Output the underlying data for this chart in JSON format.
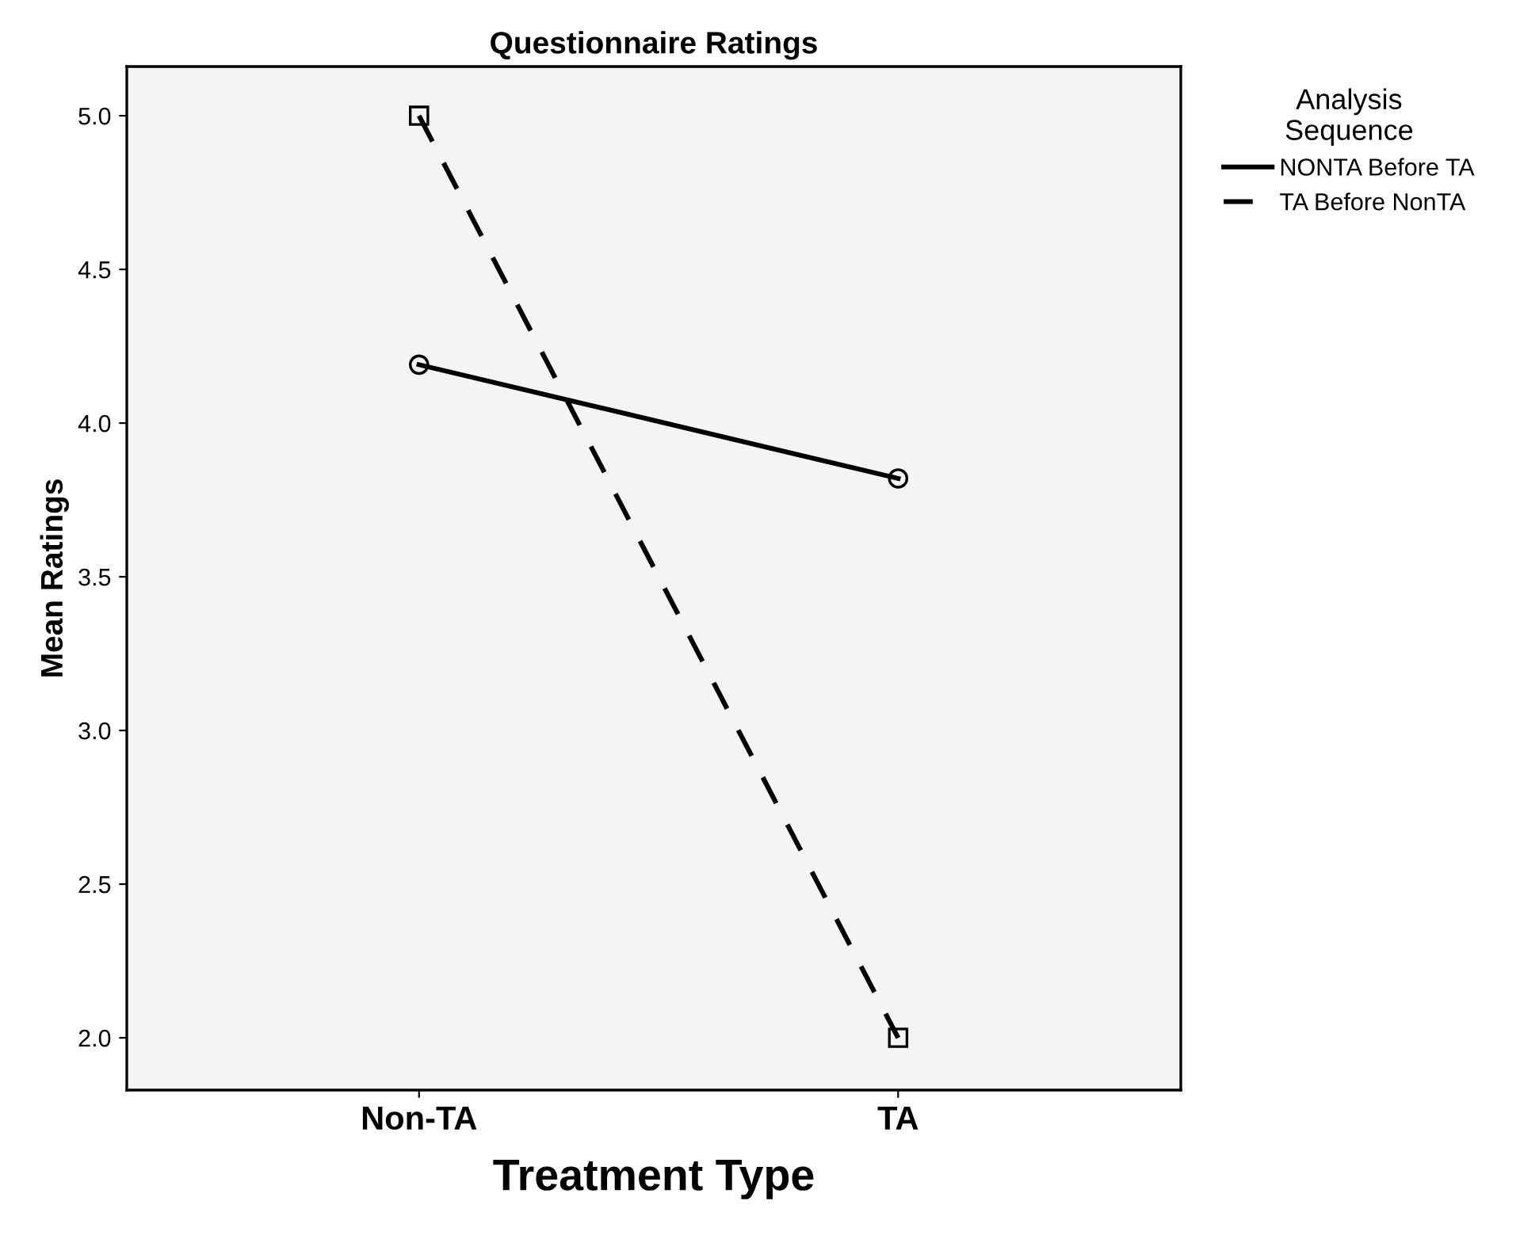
{
  "chart_data": {
    "type": "line",
    "title": "Questionnaire Ratings",
    "xlabel": "Treatment Type",
    "ylabel": "Mean Ratings",
    "legend_title": "Analysis\nSequence",
    "legend": "right",
    "grid": false,
    "categories": [
      "Non-TA",
      "TA"
    ],
    "ylim": [
      1.83,
      5.16
    ],
    "yticks": [
      {
        "value": 2.0,
        "label": "2.0"
      },
      {
        "value": 2.5,
        "label": "2.5"
      },
      {
        "value": 3.0,
        "label": "3.0"
      },
      {
        "value": 3.5,
        "label": "3.5"
      },
      {
        "value": 4.0,
        "label": "4.0"
      },
      {
        "value": 4.5,
        "label": "4.5"
      },
      {
        "value": 5.0,
        "label": "5.0"
      }
    ],
    "series": [
      {
        "name": "NONTA Before TA",
        "color": "#000000",
        "values": [
          4.19,
          3.82
        ],
        "marker": "circle",
        "line_style": "solid"
      },
      {
        "name": "TA Before NonTA",
        "color": "#000000",
        "values": [
          5.0,
          2.0
        ],
        "marker": "square",
        "line_style": "dashed"
      }
    ]
  }
}
